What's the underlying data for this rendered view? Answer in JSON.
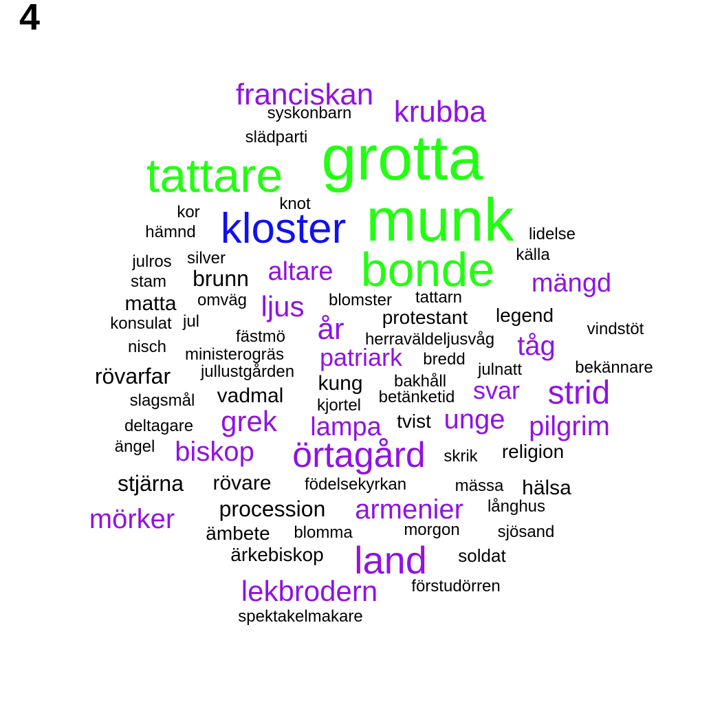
{
  "panel_label": "4",
  "colors": {
    "green": "#22FF11",
    "blue": "#1010F0",
    "purple": "#9012E4",
    "black": "#000000"
  },
  "words": [
    {
      "text": "grotta",
      "color": "green"
    },
    {
      "text": "munk",
      "color": "green"
    },
    {
      "text": "tattare",
      "color": "green"
    },
    {
      "text": "bonde",
      "color": "green"
    },
    {
      "text": "kloster",
      "color": "blue"
    },
    {
      "text": "land",
      "color": "purple"
    },
    {
      "text": "örtagård",
      "color": "purple"
    },
    {
      "text": "franciskan",
      "color": "purple"
    },
    {
      "text": "krubba",
      "color": "purple"
    },
    {
      "text": "strid",
      "color": "purple"
    },
    {
      "text": "lekbrodern",
      "color": "purple"
    },
    {
      "text": "armenier",
      "color": "purple"
    },
    {
      "text": "biskop",
      "color": "purple"
    },
    {
      "text": "mörker",
      "color": "purple"
    },
    {
      "text": "altare",
      "color": "purple"
    },
    {
      "text": "mängd",
      "color": "purple"
    },
    {
      "text": "grek",
      "color": "purple"
    },
    {
      "text": "pilgrim",
      "color": "purple"
    },
    {
      "text": "år",
      "color": "purple"
    },
    {
      "text": "ljus",
      "color": "purple"
    },
    {
      "text": "tåg",
      "color": "purple"
    },
    {
      "text": "unge",
      "color": "purple"
    },
    {
      "text": "lampa",
      "color": "purple"
    },
    {
      "text": "patriark",
      "color": "purple"
    },
    {
      "text": "svar",
      "color": "purple"
    },
    {
      "text": "syskonbarn",
      "color": "black"
    },
    {
      "text": "slädparti",
      "color": "black"
    },
    {
      "text": "knot",
      "color": "black"
    },
    {
      "text": "kor",
      "color": "black"
    },
    {
      "text": "hämnd",
      "color": "black"
    },
    {
      "text": "lidelse",
      "color": "black"
    },
    {
      "text": "källa",
      "color": "black"
    },
    {
      "text": "julros",
      "color": "black"
    },
    {
      "text": "silver",
      "color": "black"
    },
    {
      "text": "stam",
      "color": "black"
    },
    {
      "text": "brunn",
      "color": "black"
    },
    {
      "text": "matta",
      "color": "black"
    },
    {
      "text": "omväg",
      "color": "black"
    },
    {
      "text": "blomster",
      "color": "black"
    },
    {
      "text": "tattarn",
      "color": "black"
    },
    {
      "text": "konsulat",
      "color": "black"
    },
    {
      "text": "jul",
      "color": "black"
    },
    {
      "text": "protestant",
      "color": "black"
    },
    {
      "text": "legend",
      "color": "black"
    },
    {
      "text": "vindstöt",
      "color": "black"
    },
    {
      "text": "fästmö",
      "color": "black"
    },
    {
      "text": "herraväldeljusvåg",
      "color": "black"
    },
    {
      "text": "nisch",
      "color": "black"
    },
    {
      "text": "ministerogräs",
      "color": "black"
    },
    {
      "text": "bredd",
      "color": "black"
    },
    {
      "text": "bekännare",
      "color": "black"
    },
    {
      "text": "rövarfar",
      "color": "black"
    },
    {
      "text": "jullustgården",
      "color": "black"
    },
    {
      "text": "julnatt",
      "color": "black"
    },
    {
      "text": "kung",
      "color": "black"
    },
    {
      "text": "bakhåll",
      "color": "black"
    },
    {
      "text": "slagsmål",
      "color": "black"
    },
    {
      "text": "vadmal",
      "color": "black"
    },
    {
      "text": "betänketid",
      "color": "black"
    },
    {
      "text": "kjortel",
      "color": "black"
    },
    {
      "text": "deltagare",
      "color": "black"
    },
    {
      "text": "tvist",
      "color": "black"
    },
    {
      "text": "ängel",
      "color": "black"
    },
    {
      "text": "religion",
      "color": "black"
    },
    {
      "text": "skrik",
      "color": "black"
    },
    {
      "text": "stjärna",
      "color": "black"
    },
    {
      "text": "rövare",
      "color": "black"
    },
    {
      "text": "födelsekyrkan",
      "color": "black"
    },
    {
      "text": "mässa",
      "color": "black"
    },
    {
      "text": "hälsa",
      "color": "black"
    },
    {
      "text": "procession",
      "color": "black"
    },
    {
      "text": "långhus",
      "color": "black"
    },
    {
      "text": "ämbete",
      "color": "black"
    },
    {
      "text": "blomma",
      "color": "black"
    },
    {
      "text": "morgon",
      "color": "black"
    },
    {
      "text": "sjösand",
      "color": "black"
    },
    {
      "text": "ärkebiskop",
      "color": "black"
    },
    {
      "text": "soldat",
      "color": "black"
    },
    {
      "text": "förstudörren",
      "color": "black"
    },
    {
      "text": "spektakelmakare",
      "color": "black"
    }
  ]
}
